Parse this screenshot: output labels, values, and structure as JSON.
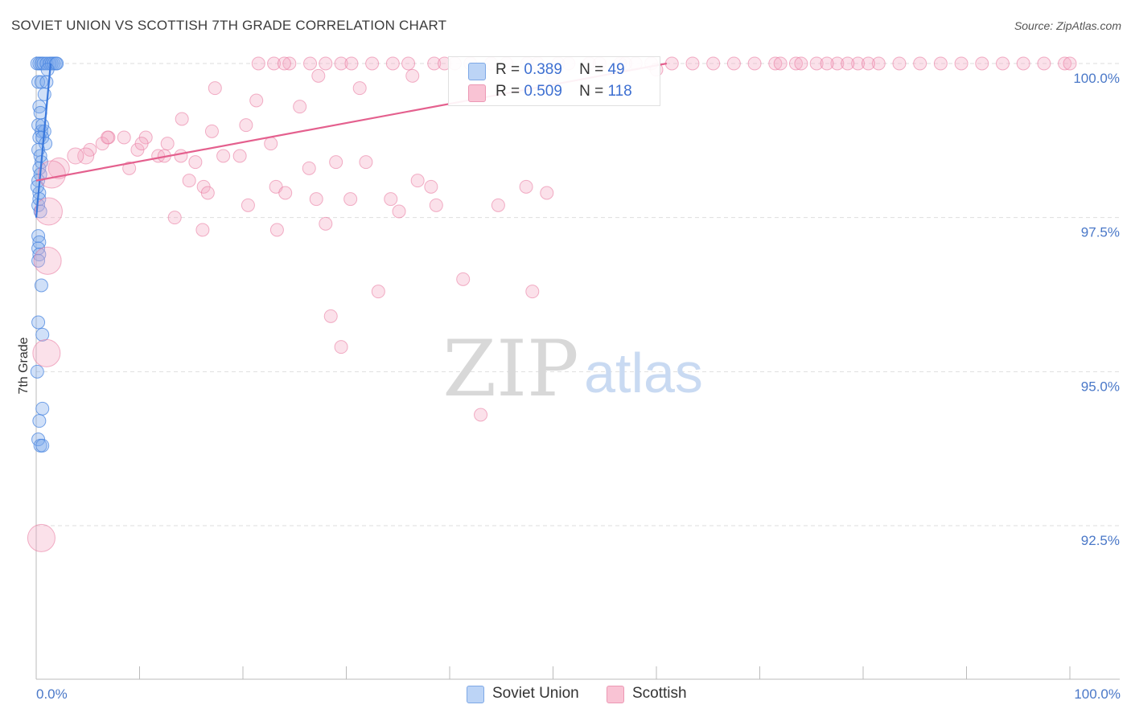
{
  "title": "SOVIET UNION VS SCOTTISH 7TH GRADE CORRELATION CHART",
  "source": "Source: ZipAtlas.com",
  "watermark": {
    "zip": "ZIP",
    "atlas": "atlas"
  },
  "colors": {
    "soviet": "#4a86e0",
    "soviet_fill": "#a8c8f5",
    "scottish": "#e8729a",
    "scottish_fill": "#f7b8cc",
    "axis_text": "#4a78c8",
    "grid": "#dddddd"
  },
  "legend": {
    "rows": [
      {
        "r_label": "R =",
        "r_value": "0.389",
        "n_label": "N =",
        "n_value": "49"
      },
      {
        "r_label": "R =",
        "r_value": "0.509",
        "n_label": "N =",
        "n_value": "118"
      }
    ]
  },
  "bottom_legend": [
    "Soviet Union",
    "Scottish"
  ],
  "chart_data": {
    "type": "scatter",
    "title": "SOVIET UNION VS SCOTTISH 7TH GRADE CORRELATION CHART",
    "xlabel": "",
    "ylabel": "7th Grade",
    "xlim": [
      0,
      100
    ],
    "ylim": [
      90.3,
      100.3
    ],
    "x_tick_labels": [
      "0.0%",
      "100.0%"
    ],
    "y_ticks": [
      100.0,
      97.5,
      95.0,
      92.5
    ],
    "y_tick_labels": [
      "100.0%",
      "97.5%",
      "95.0%",
      "92.5%"
    ],
    "grid": true,
    "legend_position": "top-center",
    "series": [
      {
        "name": "Soviet Union",
        "color": "#4a86e0",
        "trend": {
          "x": [
            0.0,
            1.4
          ],
          "y": [
            97.5,
            100.0
          ]
        },
        "points": [
          [
            0.1,
            100.0
          ],
          [
            0.3,
            100.0
          ],
          [
            0.5,
            100.0
          ],
          [
            0.7,
            100.0
          ],
          [
            1.0,
            100.0
          ],
          [
            1.3,
            100.0
          ],
          [
            1.5,
            100.0
          ],
          [
            1.7,
            100.0
          ],
          [
            1.9,
            100.0
          ],
          [
            2.0,
            100.0
          ],
          [
            0.2,
            99.7
          ],
          [
            0.5,
            99.7
          ],
          [
            1.0,
            99.7
          ],
          [
            0.3,
            99.3
          ],
          [
            0.4,
            99.2
          ],
          [
            0.2,
            99.0
          ],
          [
            0.5,
            98.9
          ],
          [
            0.8,
            98.9
          ],
          [
            0.3,
            98.8
          ],
          [
            0.6,
            98.8
          ],
          [
            0.9,
            98.7
          ],
          [
            0.2,
            98.6
          ],
          [
            0.5,
            98.4
          ],
          [
            0.3,
            98.3
          ],
          [
            0.4,
            98.2
          ],
          [
            0.3,
            97.9
          ],
          [
            0.2,
            97.7
          ],
          [
            0.4,
            97.6
          ],
          [
            0.2,
            97.2
          ],
          [
            0.3,
            97.1
          ],
          [
            0.2,
            97.0
          ],
          [
            0.3,
            96.9
          ],
          [
            0.5,
            96.4
          ],
          [
            0.2,
            95.8
          ],
          [
            0.6,
            95.6
          ],
          [
            0.1,
            95.0
          ],
          [
            0.6,
            94.4
          ],
          [
            0.3,
            94.2
          ],
          [
            0.2,
            93.9
          ],
          [
            0.4,
            93.8
          ],
          [
            0.6,
            93.8
          ],
          [
            0.2,
            98.1
          ],
          [
            0.4,
            98.5
          ],
          [
            0.6,
            99.0
          ],
          [
            0.8,
            99.5
          ],
          [
            1.1,
            99.9
          ],
          [
            0.1,
            98.0
          ],
          [
            0.3,
            97.8
          ],
          [
            0.2,
            96.8
          ]
        ]
      },
      {
        "name": "Scottish",
        "color": "#e8729a",
        "trend": {
          "x": [
            0.0,
            61.0
          ],
          "y": [
            98.1,
            100.0
          ]
        },
        "points": [
          [
            21.5,
            100.0
          ],
          [
            23.0,
            100.0
          ],
          [
            24.5,
            100.0
          ],
          [
            26.5,
            100.0
          ],
          [
            29.5,
            100.0
          ],
          [
            30.5,
            100.0
          ],
          [
            32.5,
            100.0
          ],
          [
            34.5,
            100.0
          ],
          [
            36.0,
            100.0
          ],
          [
            38.5,
            100.0
          ],
          [
            39.5,
            100.0
          ],
          [
            40.5,
            100.0
          ],
          [
            42.0,
            100.0
          ],
          [
            44.0,
            100.0
          ],
          [
            45.5,
            100.0
          ],
          [
            47.5,
            100.0
          ],
          [
            48.5,
            100.0
          ],
          [
            50.5,
            100.0
          ],
          [
            51.5,
            100.0
          ],
          [
            53.5,
            100.0
          ],
          [
            54.5,
            100.0
          ],
          [
            56.5,
            100.0
          ],
          [
            58.0,
            100.0
          ],
          [
            59.5,
            100.0
          ],
          [
            61.5,
            100.0
          ],
          [
            63.5,
            100.0
          ],
          [
            65.5,
            100.0
          ],
          [
            67.5,
            100.0
          ],
          [
            69.5,
            100.0
          ],
          [
            71.5,
            100.0
          ],
          [
            73.5,
            100.0
          ],
          [
            75.5,
            100.0
          ],
          [
            77.5,
            100.0
          ],
          [
            79.5,
            100.0
          ],
          [
            81.5,
            100.0
          ],
          [
            83.5,
            100.0
          ],
          [
            85.5,
            100.0
          ],
          [
            87.5,
            100.0
          ],
          [
            89.5,
            100.0
          ],
          [
            91.5,
            100.0
          ],
          [
            93.5,
            100.0
          ],
          [
            95.5,
            100.0
          ],
          [
            97.5,
            100.0
          ],
          [
            99.5,
            100.0
          ],
          [
            100.0,
            100.0
          ],
          [
            72.0,
            100.0
          ],
          [
            74.0,
            100.0
          ],
          [
            76.5,
            100.0
          ],
          [
            78.5,
            100.0
          ],
          [
            80.5,
            100.0
          ],
          [
            17.3,
            99.6
          ],
          [
            21.3,
            99.4
          ],
          [
            25.5,
            99.3
          ],
          [
            36.4,
            99.8
          ],
          [
            50.0,
            99.8
          ],
          [
            60.0,
            99.9
          ],
          [
            27.3,
            99.8
          ],
          [
            31.3,
            99.6
          ],
          [
            24.0,
            100.0
          ],
          [
            28.0,
            100.0
          ],
          [
            10.6,
            98.8
          ],
          [
            14.1,
            99.1
          ],
          [
            17.0,
            98.9
          ],
          [
            14.0,
            98.5
          ],
          [
            20.3,
            99.0
          ],
          [
            22.7,
            98.7
          ],
          [
            29.0,
            98.4
          ],
          [
            38.2,
            98.0
          ],
          [
            11.8,
            98.5
          ],
          [
            8.5,
            98.8
          ],
          [
            7.0,
            98.8
          ],
          [
            6.4,
            98.7
          ],
          [
            5.2,
            98.6
          ],
          [
            4.8,
            98.5
          ],
          [
            3.8,
            98.5
          ],
          [
            2.2,
            98.3
          ],
          [
            1.5,
            98.2
          ],
          [
            9.0,
            98.3
          ],
          [
            12.7,
            98.7
          ],
          [
            15.4,
            98.4
          ],
          [
            18.1,
            98.5
          ],
          [
            19.7,
            98.5
          ],
          [
            26.4,
            98.3
          ],
          [
            23.2,
            98.0
          ],
          [
            31.9,
            98.4
          ],
          [
            36.9,
            98.1
          ],
          [
            47.4,
            98.0
          ],
          [
            49.4,
            97.9
          ],
          [
            14.8,
            98.1
          ],
          [
            16.2,
            98.0
          ],
          [
            16.6,
            97.9
          ],
          [
            20.5,
            97.7
          ],
          [
            27.1,
            97.8
          ],
          [
            34.3,
            97.8
          ],
          [
            38.7,
            97.7
          ],
          [
            44.7,
            97.7
          ],
          [
            13.4,
            97.5
          ],
          [
            16.1,
            97.3
          ],
          [
            23.3,
            97.3
          ],
          [
            28.0,
            97.4
          ],
          [
            41.3,
            96.5
          ],
          [
            48.0,
            96.3
          ],
          [
            33.1,
            96.3
          ],
          [
            28.5,
            95.9
          ],
          [
            29.5,
            95.4
          ],
          [
            43.0,
            94.3
          ],
          [
            1.2,
            97.6
          ],
          [
            1.1,
            96.8
          ],
          [
            1.0,
            95.3
          ],
          [
            0.5,
            92.3
          ],
          [
            6.9,
            98.8
          ],
          [
            9.8,
            98.6
          ],
          [
            10.2,
            98.7
          ],
          [
            12.4,
            98.5
          ],
          [
            24.1,
            97.9
          ],
          [
            30.4,
            97.8
          ],
          [
            35.1,
            97.6
          ],
          [
            57.0,
            100.0
          ]
        ]
      }
    ]
  }
}
